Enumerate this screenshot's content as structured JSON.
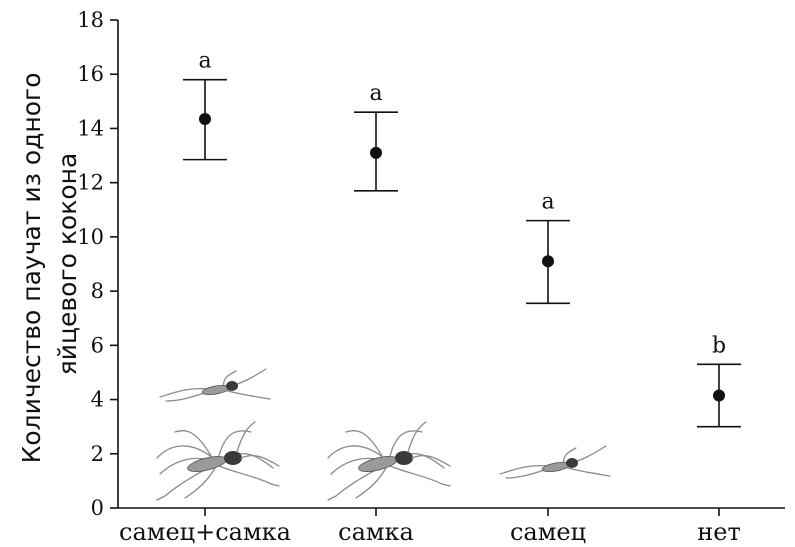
{
  "chart_data": {
    "type": "scatter",
    "title": "",
    "ylabel": "Количество паучат из одного яйцевого кокона",
    "ylabel_lines": [
      "Количество паучат из одного",
      "яйцевого кокона"
    ],
    "xlabel": "",
    "ylim": [
      0,
      18
    ],
    "yticks": [
      0,
      2,
      4,
      6,
      8,
      10,
      12,
      14,
      16,
      18
    ],
    "categories": [
      "самец+самка",
      "самка",
      "самец",
      "нет"
    ],
    "values": [
      14.35,
      13.1,
      9.1,
      4.15
    ],
    "error_low": [
      12.85,
      11.7,
      7.55,
      3.0
    ],
    "error_high": [
      15.8,
      14.6,
      10.6,
      5.3
    ],
    "significance_letters": [
      "a",
      "a",
      "a",
      "b"
    ],
    "grid": false,
    "spider_icons": [
      {
        "category_index": 0,
        "icons": [
          "large-spider-icon",
          "small-spider-icon"
        ]
      },
      {
        "category_index": 1,
        "icons": [
          "large-spider-icon"
        ]
      },
      {
        "category_index": 2,
        "icons": [
          "small-spider-icon"
        ]
      }
    ],
    "colors": {
      "marker": "#111111",
      "axis": "#111111"
    }
  }
}
